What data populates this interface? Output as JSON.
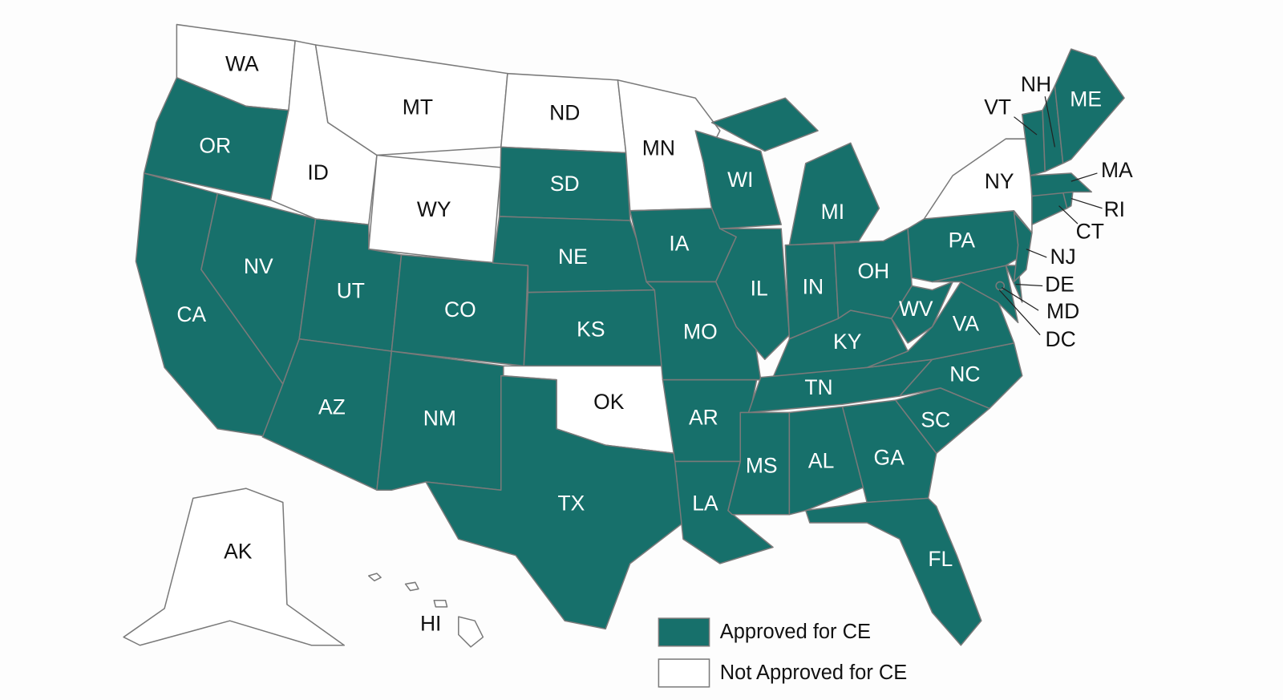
{
  "states": [
    {
      "label": "WA",
      "approved": false
    },
    {
      "label": "OR",
      "approved": true
    },
    {
      "label": "CA",
      "approved": true
    },
    {
      "label": "NV",
      "approved": true
    },
    {
      "label": "ID",
      "approved": false
    },
    {
      "label": "MT",
      "approved": false
    },
    {
      "label": "WY",
      "approved": false
    },
    {
      "label": "UT",
      "approved": true
    },
    {
      "label": "CO",
      "approved": true
    },
    {
      "label": "AZ",
      "approved": true
    },
    {
      "label": "NM",
      "approved": true
    },
    {
      "label": "ND",
      "approved": false
    },
    {
      "label": "SD",
      "approved": true
    },
    {
      "label": "NE",
      "approved": true
    },
    {
      "label": "KS",
      "approved": true
    },
    {
      "label": "OK",
      "approved": false
    },
    {
      "label": "TX",
      "approved": true
    },
    {
      "label": "MN",
      "approved": false
    },
    {
      "label": "IA",
      "approved": true
    },
    {
      "label": "MO",
      "approved": true
    },
    {
      "label": "AR",
      "approved": true
    },
    {
      "label": "LA",
      "approved": true
    },
    {
      "label": "WI",
      "approved": true
    },
    {
      "label": "IL",
      "approved": true
    },
    {
      "label": "MI",
      "approved": true
    },
    {
      "label": "IN",
      "approved": true
    },
    {
      "label": "OH",
      "approved": true
    },
    {
      "label": "KY",
      "approved": true
    },
    {
      "label": "TN",
      "approved": true
    },
    {
      "label": "MS",
      "approved": true
    },
    {
      "label": "AL",
      "approved": true
    },
    {
      "label": "GA",
      "approved": true
    },
    {
      "label": "FL",
      "approved": true
    },
    {
      "label": "SC",
      "approved": true
    },
    {
      "label": "NC",
      "approved": true
    },
    {
      "label": "VA",
      "approved": true
    },
    {
      "label": "WV",
      "approved": true
    },
    {
      "label": "MD",
      "approved": true
    },
    {
      "label": "DE",
      "approved": true
    },
    {
      "label": "PA",
      "approved": true
    },
    {
      "label": "NJ",
      "approved": true
    },
    {
      "label": "NY",
      "approved": false
    },
    {
      "label": "CT",
      "approved": true
    },
    {
      "label": "RI",
      "approved": true
    },
    {
      "label": "MA",
      "approved": true
    },
    {
      "label": "VT",
      "approved": true
    },
    {
      "label": "NH",
      "approved": true
    },
    {
      "label": "ME",
      "approved": true
    },
    {
      "label": "AK",
      "approved": false
    },
    {
      "label": "HI",
      "approved": false
    },
    {
      "label": "DC",
      "approved": true
    }
  ],
  "legend": [
    {
      "label": "Approved for CE",
      "color": "#17706b"
    },
    {
      "label": "Not Approved for CE",
      "color": "#ffffff"
    }
  ]
}
